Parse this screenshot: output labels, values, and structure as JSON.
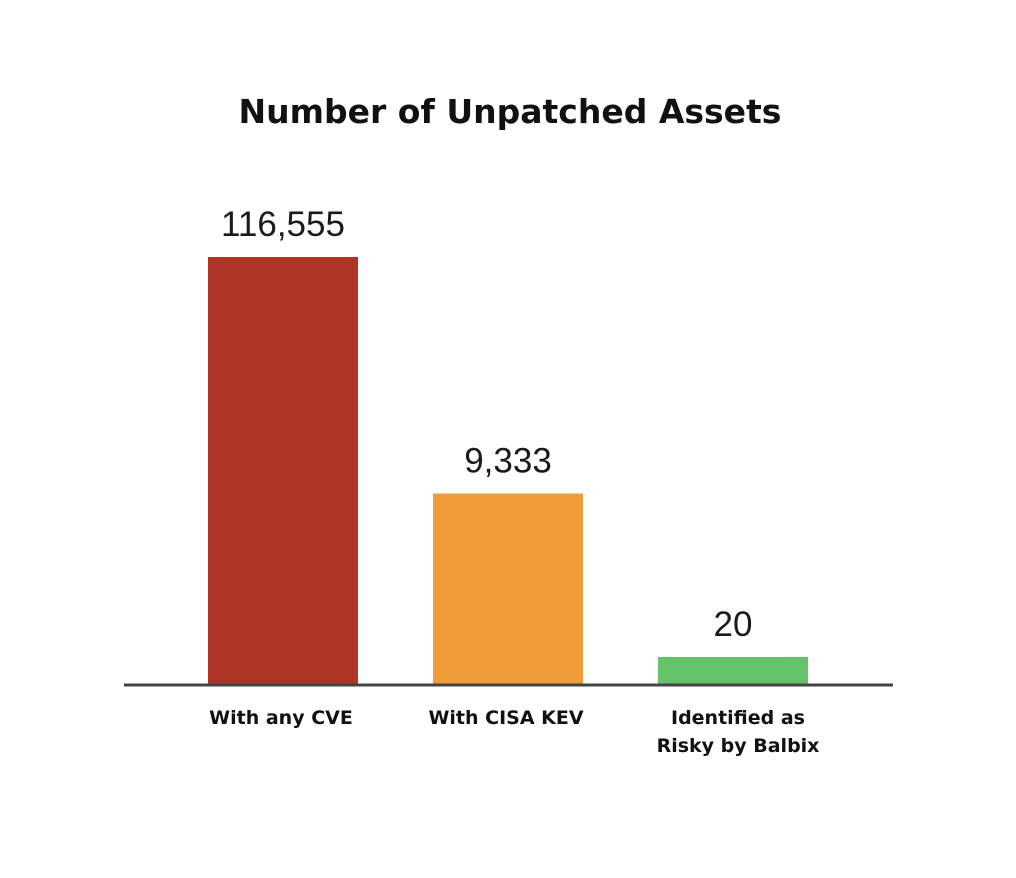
{
  "chart_data": {
    "type": "bar",
    "title": "Number of Unpatched Assets",
    "xlabel": "",
    "ylabel": "",
    "categories": [
      [
        "With any CVE"
      ],
      [
        "With CISA KEV"
      ],
      [
        "Identified as",
        "Risky by Balbix"
      ]
    ],
    "values": [
      116555,
      9333,
      20
    ],
    "value_labels": [
      "116,555",
      "9,333",
      "20"
    ],
    "colors": [
      "#ad3527",
      "#ef9c3b",
      "#65c46a"
    ],
    "axis_color": "#444444",
    "scale": "non-linear (bars not drawn to scale)",
    "grid": false,
    "legend": "none"
  }
}
